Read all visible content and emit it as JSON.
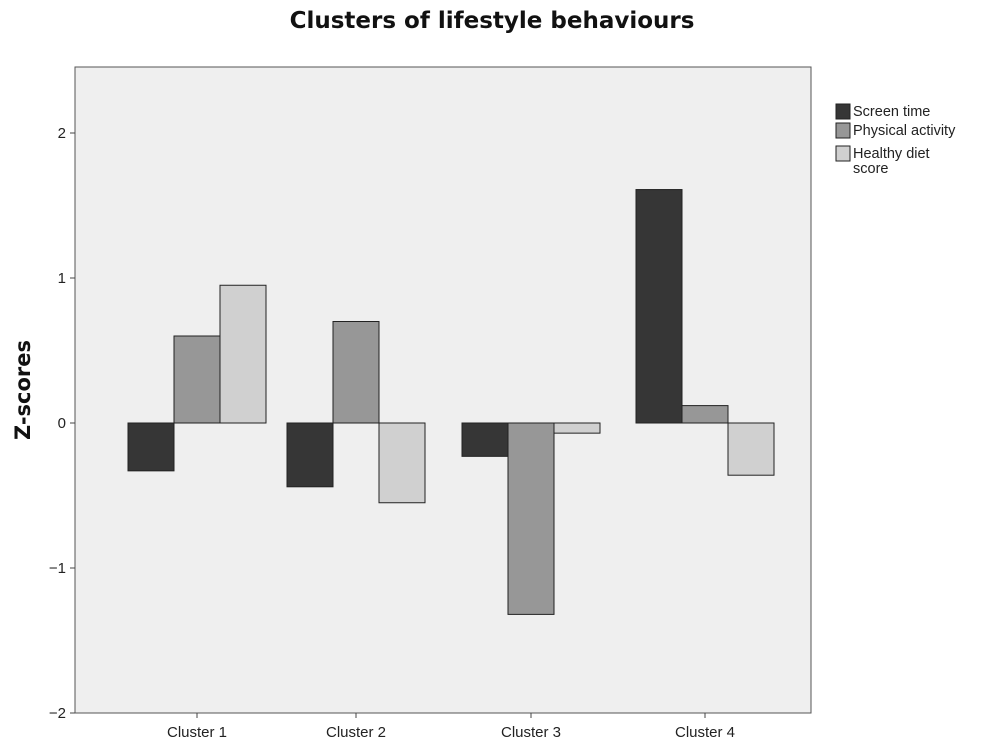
{
  "chart_data": {
    "type": "bar",
    "title": "Clusters of lifestyle behaviours",
    "xlabel": "",
    "ylabel": "Z-scores",
    "categories": [
      "Cluster 1",
      "Cluster 2",
      "Cluster 3",
      "Cluster 4"
    ],
    "series": [
      {
        "name": "Screen time",
        "color": "#363636",
        "values": [
          -0.33,
          -0.44,
          -0.23,
          1.61
        ]
      },
      {
        "name": "Physical activity",
        "color": "#979797",
        "values": [
          0.6,
          0.7,
          -1.32,
          0.12
        ]
      },
      {
        "name": "Healthy diet score",
        "color": "#d0d0d0",
        "values": [
          0.95,
          -0.55,
          -0.07,
          -0.36
        ]
      }
    ],
    "ylim": [
      -2,
      2.4
    ],
    "yticks": [
      -2,
      -1,
      0,
      1,
      2
    ],
    "grid": false,
    "legend_position": "right",
    "plot_background": "#efefef"
  }
}
